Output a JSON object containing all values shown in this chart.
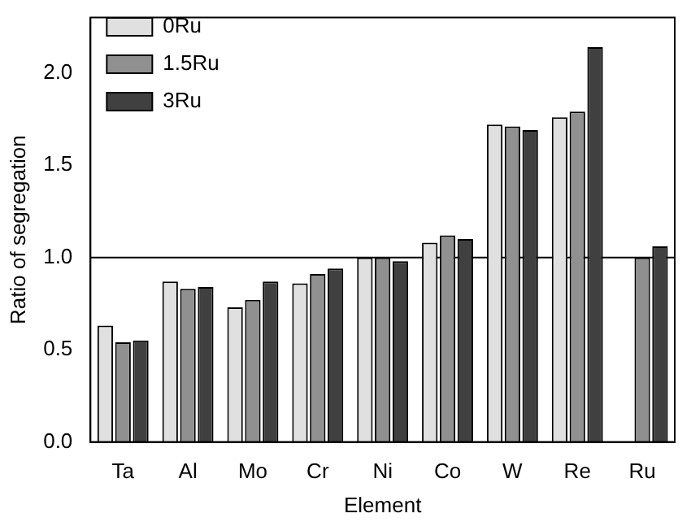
{
  "chart_data": {
    "type": "bar",
    "xlabel": "Element",
    "ylabel": "Ratio of segregation",
    "categories": [
      "Ta",
      "Al",
      "Mo",
      "Cr",
      "Ni",
      "Co",
      "W",
      "Re",
      "Ru"
    ],
    "series": [
      {
        "name": "0Ru",
        "color": "#e0e0e0",
        "values": [
          0.63,
          0.87,
          0.73,
          0.86,
          1.0,
          1.08,
          1.72,
          1.76,
          null
        ]
      },
      {
        "name": "1.5Ru",
        "color": "#909090",
        "values": [
          0.54,
          0.83,
          0.77,
          0.91,
          1.0,
          1.12,
          1.71,
          1.79,
          1.0
        ]
      },
      {
        "name": "3Ru",
        "color": "#404040",
        "values": [
          0.55,
          0.84,
          0.87,
          0.94,
          0.98,
          1.1,
          1.69,
          2.14,
          1.06
        ]
      }
    ],
    "ylim": [
      0,
      2.3
    ],
    "yticks": [
      {
        "value": 0,
        "label": "0.0"
      },
      {
        "value": 0.5,
        "label": "0.5"
      },
      {
        "value": 1,
        "label": "1.0"
      },
      {
        "value": 1.5,
        "label": "1.5"
      },
      {
        "value": 2,
        "label": "2.0"
      }
    ],
    "ref_lines": [
      {
        "axis": "y",
        "value": 1,
        "color": "#000000"
      }
    ],
    "grid": false,
    "legend": "top left"
  }
}
